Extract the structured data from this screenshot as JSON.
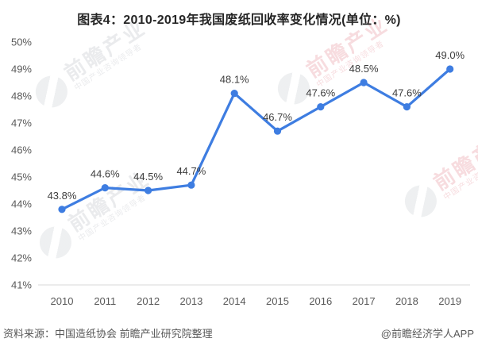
{
  "title": "图表4：2010-2019年我国废纸回收率变化情况(单位：%)",
  "footer": {
    "source": "资料来源：中国造纸协会 前瞻产业研究院整理",
    "credit": "@前瞻经济学人APP"
  },
  "watermark": {
    "big_text": "前瞻产业",
    "small_text": "中国产业咨询领导者"
  },
  "chart_data": {
    "type": "line",
    "title": "图表4：2010-2019年我国废纸回收率变化情况(单位：%)",
    "categories": [
      "2010",
      "2011",
      "2012",
      "2013",
      "2014",
      "2015",
      "2016",
      "2017",
      "2018",
      "2019"
    ],
    "values": [
      43.8,
      44.6,
      44.5,
      44.7,
      48.1,
      46.7,
      47.6,
      48.5,
      47.6,
      49.0
    ],
    "data_labels": [
      "43.8%",
      "44.6%",
      "44.5%",
      "44.7%",
      "48.1%",
      "46.7%",
      "47.6%",
      "48.5%",
      "47.6%",
      "49.0%"
    ],
    "xlabel": "",
    "ylabel": "",
    "ylim": [
      41,
      50
    ],
    "ytick_step": 1,
    "ytick_suffix": "%",
    "grid": false,
    "legend": "none",
    "line_color": "#3e7de1",
    "marker_color": "#3e7de1",
    "label_color": "#3d3d3d",
    "axis_text_color": "#595959",
    "axis_line_color": "#d9d9d9"
  }
}
